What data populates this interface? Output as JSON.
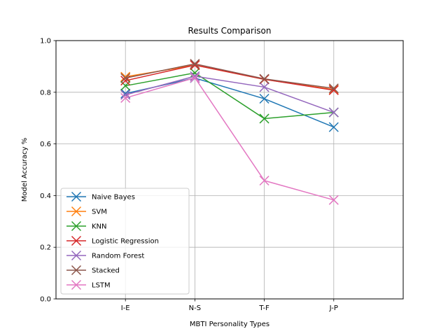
{
  "chart_data": {
    "type": "line",
    "title": "Results Comparison",
    "xlabel": "MBTI Personality Types",
    "ylabel": "Model Accuracy %",
    "categories": [
      "I-E",
      "N-S",
      "T-F",
      "J-P"
    ],
    "ylim": [
      0.0,
      1.0
    ],
    "yticks": [
      "0.0",
      "0.2",
      "0.4",
      "0.6",
      "0.8",
      "1.0"
    ],
    "grid": true,
    "legend_position": "lower-left",
    "marker": "x",
    "series": [
      {
        "name": "Naive Bayes",
        "color": "#1f77b4",
        "values": [
          0.795,
          0.855,
          0.775,
          0.665
        ]
      },
      {
        "name": "SVM",
        "color": "#ff7f0e",
        "values": [
          0.86,
          0.905,
          0.85,
          0.81
        ]
      },
      {
        "name": "KNN",
        "color": "#2ca02c",
        "values": [
          0.825,
          0.875,
          0.698,
          0.722
        ]
      },
      {
        "name": "Logistic Regression",
        "color": "#d62728",
        "values": [
          0.845,
          0.905,
          0.85,
          0.808
        ]
      },
      {
        "name": "Random Forest",
        "color": "#9467bd",
        "values": [
          0.79,
          0.862,
          0.82,
          0.722
        ]
      },
      {
        "name": "Stacked",
        "color": "#8c564b",
        "values": [
          0.855,
          0.91,
          0.852,
          0.815
        ]
      },
      {
        "name": "LSTM",
        "color": "#e377c2",
        "values": [
          0.778,
          0.856,
          0.458,
          0.383
        ]
      }
    ]
  }
}
